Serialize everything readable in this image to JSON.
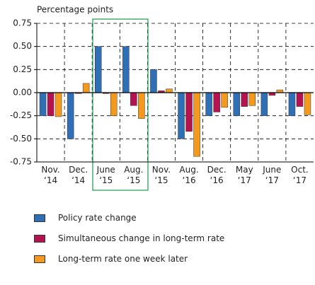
{
  "chart_data": {
    "type": "bar",
    "y_label": "Percentage points",
    "categories": [
      "Nov.\n‘14",
      "Dec.\n‘14",
      "June\n‘15",
      "Aug.\n‘15",
      "Nov.\n‘15",
      "Aug.\n‘16",
      "Dec.\n‘16",
      "May\n‘17",
      "June\n‘17",
      "Oct.\n‘17"
    ],
    "series": [
      {
        "name": "Policy rate change",
        "color": "#2f6fb6",
        "values": [
          -0.25,
          -0.5,
          0.5,
          0.5,
          0.25,
          -0.5,
          -0.25,
          -0.25,
          -0.25,
          -0.25
        ]
      },
      {
        "name": "Simultaneous change in long-term rate",
        "color": "#b5124f",
        "values": [
          -0.25,
          -0.01,
          -0.01,
          -0.14,
          0.02,
          -0.42,
          -0.21,
          -0.15,
          -0.03,
          -0.15
        ]
      },
      {
        "name": "Long-term rate one week later",
        "color": "#f39a1e",
        "values": [
          -0.26,
          0.1,
          -0.25,
          -0.28,
          0.04,
          -0.69,
          -0.16,
          -0.14,
          0.03,
          -0.24
        ]
      }
    ],
    "ylim": [
      -0.75,
      0.75
    ],
    "yticks": [
      0.75,
      {
        "value": 0.5,
        "label": "0.50"
      },
      0.25,
      {
        "value": 0,
        "label": "0.00"
      },
      -0.25,
      {
        "value": -0.5,
        "label": "-0.50"
      },
      -0.75
    ],
    "grid": true
  }
}
